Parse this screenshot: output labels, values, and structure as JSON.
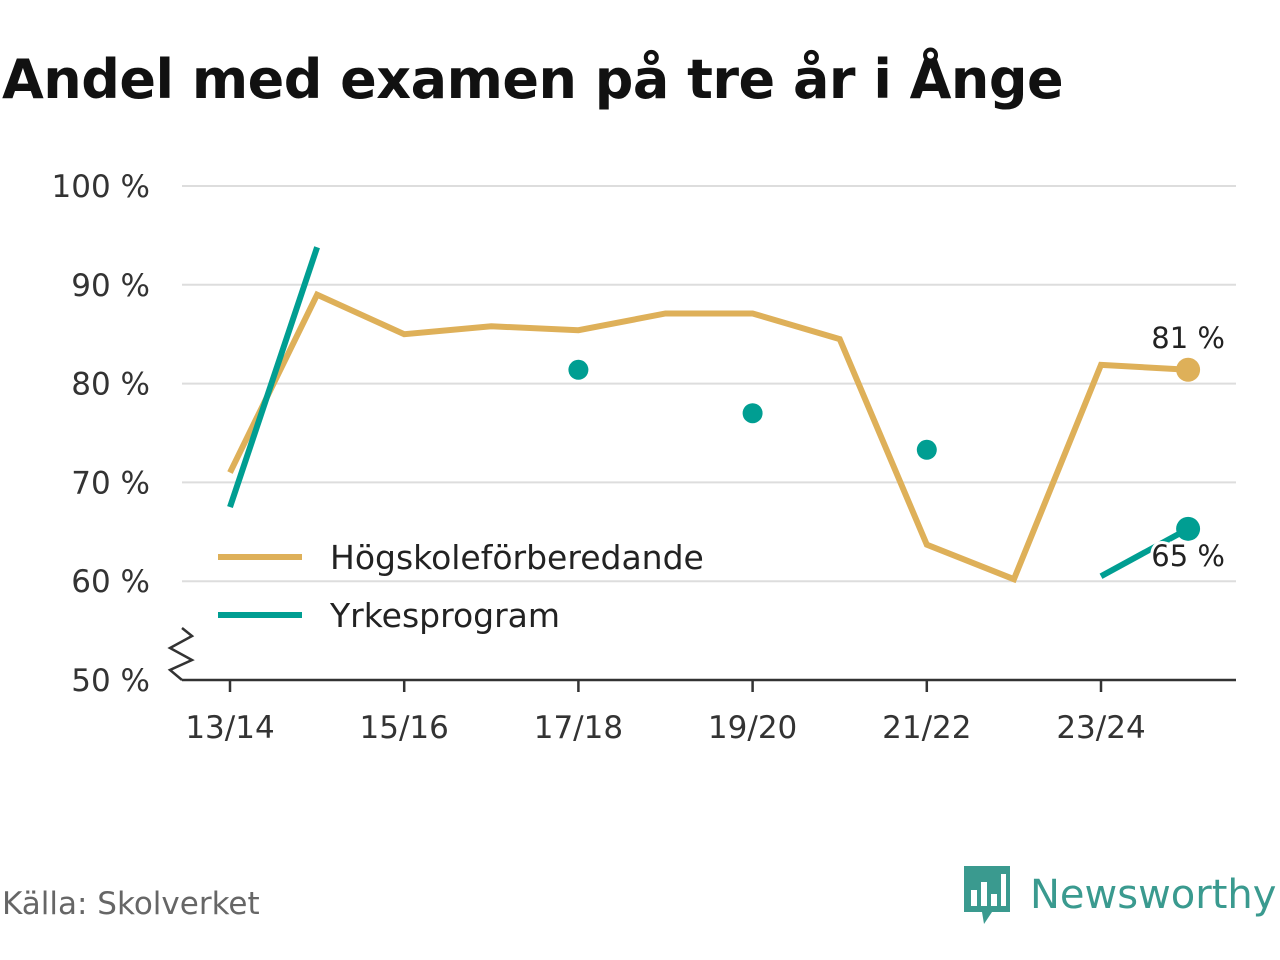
{
  "title": "Andel med examen på tre år i Ånge",
  "source": "Källa: Skolverket",
  "brand": "Newsworthy",
  "colors": {
    "hogskole": "#deb059",
    "yrkes": "#009e92",
    "grid": "#dddddd",
    "axis": "#333333",
    "brand": "#3a9a8f"
  },
  "chart_data": {
    "type": "line",
    "x": [
      "13/14",
      "14/15",
      "15/16",
      "16/17",
      "17/18",
      "18/19",
      "19/20",
      "20/21",
      "21/22",
      "22/23",
      "23/24",
      "24/25"
    ],
    "x_tick_labels": [
      "13/14",
      "15/16",
      "17/18",
      "19/20",
      "21/22",
      "23/24"
    ],
    "y_tick_labels": [
      "50 %",
      "60 %",
      "70 %",
      "80 %",
      "90 %",
      "100 %"
    ],
    "ylim": [
      50,
      100
    ],
    "y_axis_break": true,
    "grid": true,
    "legend_position": "lower-left",
    "series": [
      {
        "name": "Högskoleförberedande",
        "values": [
          71,
          89,
          85,
          85.8,
          85.4,
          87.1,
          87.1,
          84.5,
          63.7,
          60.2,
          81.9,
          81.4
        ],
        "end_label": "81 %"
      },
      {
        "name": "Yrkesprogram",
        "values": [
          67.5,
          93.8,
          null,
          null,
          81.4,
          null,
          77,
          null,
          73.3,
          null,
          60.5,
          65.3
        ],
        "end_label": "65 %"
      }
    ]
  }
}
